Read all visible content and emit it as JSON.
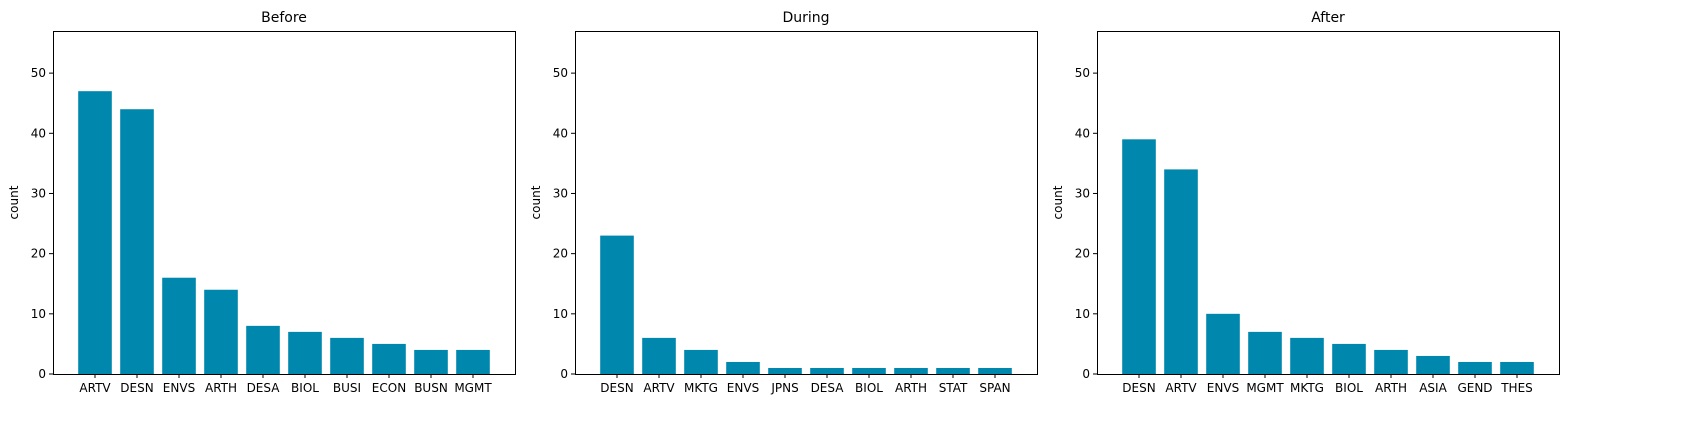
{
  "bar_color": "#0087AE",
  "chart_data": [
    {
      "type": "bar",
      "title": "Before",
      "ylabel": "count",
      "ylim": [
        0,
        57
      ],
      "yticks": [
        0,
        10,
        20,
        30,
        40,
        50
      ],
      "categories": [
        "ARTV",
        "DESN",
        "ENVS",
        "ARTH",
        "DESA",
        "BIOL",
        "BUSI",
        "ECON",
        "BUSN",
        "MGMT"
      ],
      "values": [
        47,
        44,
        16,
        14,
        8,
        7,
        6,
        5,
        4,
        4
      ]
    },
    {
      "type": "bar",
      "title": "During",
      "ylabel": "count",
      "ylim": [
        0,
        57
      ],
      "yticks": [
        0,
        10,
        20,
        30,
        40,
        50
      ],
      "categories": [
        "DESN",
        "ARTV",
        "MKTG",
        "ENVS",
        "JPNS",
        "DESA",
        "BIOL",
        "ARTH",
        "STAT",
        "SPAN"
      ],
      "values": [
        23,
        6,
        4,
        2,
        1,
        1,
        1,
        1,
        1,
        1
      ]
    },
    {
      "type": "bar",
      "title": "After",
      "ylabel": "count",
      "ylim": [
        0,
        57
      ],
      "yticks": [
        0,
        10,
        20,
        30,
        40,
        50
      ],
      "categories": [
        "DESN",
        "ARTV",
        "ENVS",
        "MGMT",
        "MKTG",
        "BIOL",
        "ARTH",
        "ASIA",
        "GEND",
        "THES"
      ],
      "values": [
        39,
        34,
        10,
        7,
        6,
        5,
        4,
        3,
        2,
        2
      ]
    }
  ]
}
